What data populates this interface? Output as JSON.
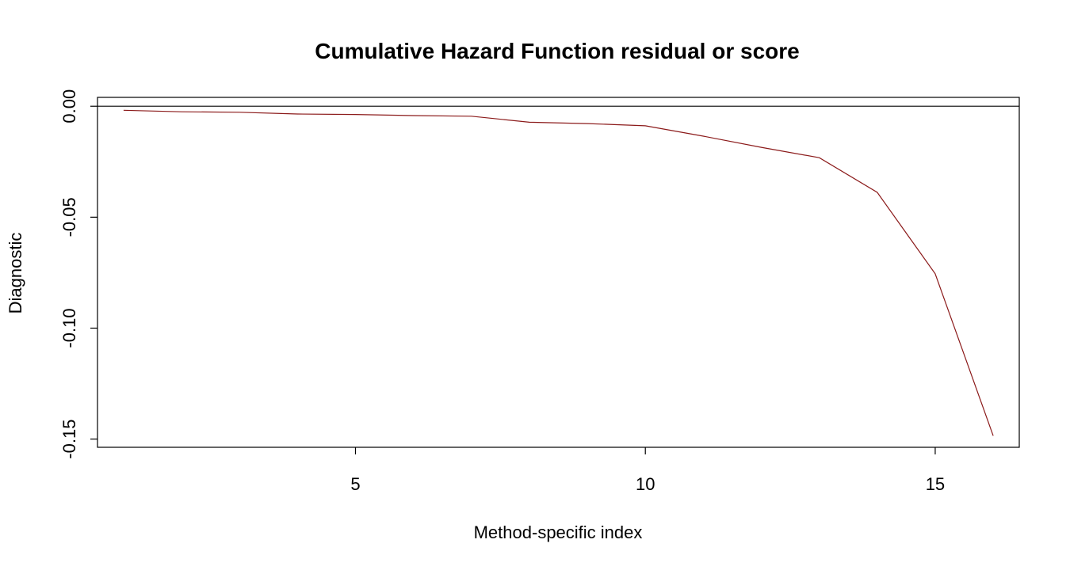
{
  "chart_data": {
    "type": "line",
    "title": "Cumulative Hazard Function residual or score",
    "xlabel": "Method-specific index",
    "ylabel": "Diagnostic",
    "xlim": [
      0.55,
      16.45
    ],
    "ylim": [
      -0.1537,
      0.004
    ],
    "x_ticks": [
      5,
      10,
      15
    ],
    "x_tick_labels": [
      "5",
      "10",
      "15"
    ],
    "y_ticks": [
      0.0,
      -0.05,
      -0.1,
      -0.15
    ],
    "y_tick_labels": [
      "0.00",
      "-0.05",
      "-0.10",
      "-0.15"
    ],
    "reference_line_y": 0,
    "grid": false,
    "series": [
      {
        "color": "#8B1A1A",
        "x": [
          1,
          2,
          3,
          4,
          5,
          6,
          7,
          8,
          9,
          10,
          11,
          12,
          13,
          14,
          15,
          16
        ],
        "values": [
          -0.0018,
          -0.0025,
          -0.0027,
          -0.0035,
          -0.0037,
          -0.0042,
          -0.0045,
          -0.0072,
          -0.0078,
          -0.0088,
          -0.0135,
          -0.0185,
          -0.0232,
          -0.0388,
          -0.0755,
          -0.1485
        ]
      }
    ]
  }
}
